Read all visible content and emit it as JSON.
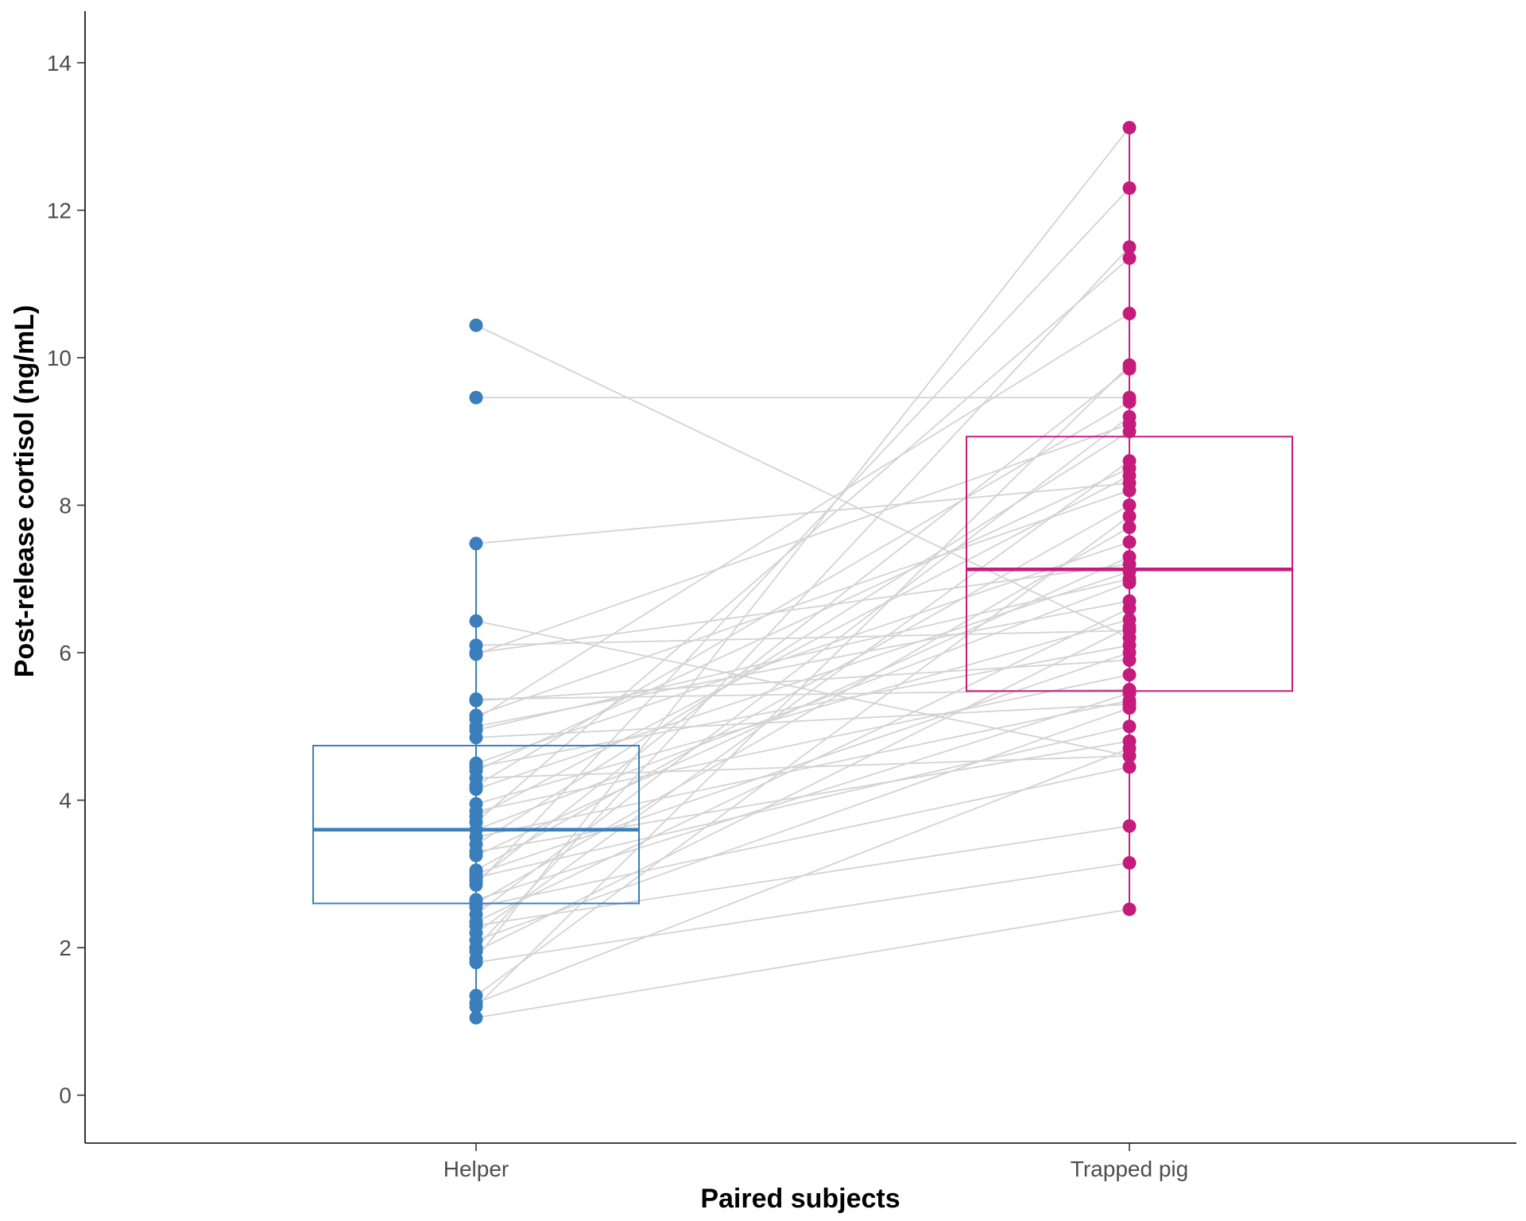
{
  "chart_data": {
    "type": "box",
    "xlabel": "Paired subjects",
    "ylabel": "Post-release cortisol (ng/mL)",
    "ylim": [
      -0.65,
      14.7
    ],
    "yticks": [
      0,
      2,
      4,
      6,
      8,
      10,
      12,
      14
    ],
    "categories": [
      "Helper",
      "Trapped pig"
    ],
    "grid": false,
    "legend": "none",
    "colors": {
      "Helper": "#3a7ebb",
      "Trapped pig": "#c51b7d",
      "pair_line": "#d3d3d3"
    },
    "boxes": [
      {
        "group": "Helper",
        "q1": 2.6,
        "median": 3.6,
        "q3": 4.74,
        "whisker_low": 1.05,
        "whisker_high": 7.48
      },
      {
        "group": "Trapped pig",
        "q1": 5.48,
        "median": 7.13,
        "q3": 8.93,
        "whisker_low": 2.52,
        "whisker_high": 13.12
      }
    ],
    "pairs": [
      [
        10.44,
        6.2
      ],
      [
        9.46,
        9.46
      ],
      [
        7.48,
        8.3
      ],
      [
        6.43,
        4.6
      ],
      [
        6.1,
        6.3
      ],
      [
        6.0,
        7.2
      ],
      [
        5.98,
        9.1
      ],
      [
        5.37,
        5.5
      ],
      [
        5.35,
        5.9
      ],
      [
        5.15,
        8.2
      ],
      [
        5.1,
        10.6
      ],
      [
        5.0,
        6.7
      ],
      [
        4.95,
        7.0
      ],
      [
        4.85,
        5.3
      ],
      [
        4.5,
        7.5
      ],
      [
        4.45,
        6.1
      ],
      [
        4.4,
        8.5
      ],
      [
        4.3,
        4.6
      ],
      [
        4.2,
        9.4
      ],
      [
        4.15,
        7.1
      ],
      [
        3.95,
        6.45
      ],
      [
        3.85,
        5.7
      ],
      [
        3.78,
        8.4
      ],
      [
        3.7,
        11.35
      ],
      [
        3.6,
        6.95
      ],
      [
        3.5,
        5.35
      ],
      [
        3.4,
        9.0
      ],
      [
        3.3,
        4.8
      ],
      [
        3.25,
        7.3
      ],
      [
        3.05,
        8.0
      ],
      [
        3.0,
        6.0
      ],
      [
        2.95,
        5.0
      ],
      [
        2.9,
        9.85
      ],
      [
        2.85,
        12.3
      ],
      [
        2.65,
        5.45
      ],
      [
        2.6,
        7.7
      ],
      [
        2.55,
        4.45
      ],
      [
        2.45,
        9.2
      ],
      [
        2.35,
        6.6
      ],
      [
        2.3,
        3.65
      ],
      [
        2.2,
        8.6
      ],
      [
        2.1,
        5.25
      ],
      [
        2.0,
        11.5
      ],
      [
        1.95,
        6.35
      ],
      [
        1.85,
        13.12
      ],
      [
        1.8,
        3.15
      ],
      [
        1.35,
        7.85
      ],
      [
        1.25,
        4.7
      ],
      [
        1.2,
        9.9
      ],
      [
        1.05,
        2.52
      ]
    ]
  }
}
